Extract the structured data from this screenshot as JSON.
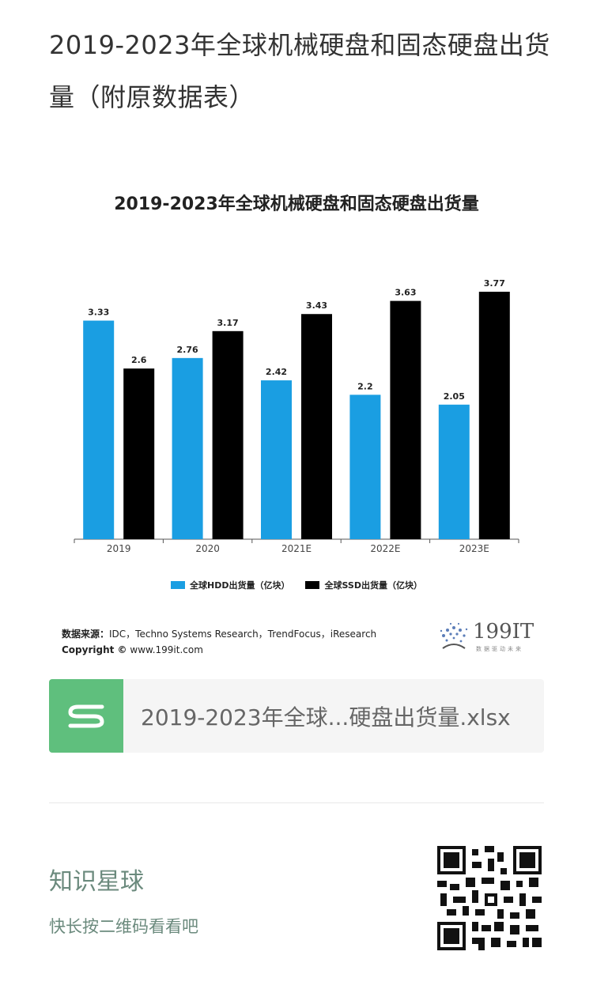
{
  "page": {
    "title": "2019-2023年全球机械硬盘和固态硬盘出货量（附原数据表）"
  },
  "chart_data": {
    "type": "bar",
    "title": "2019-2023年全球机械硬盘和固态硬盘出货量",
    "categories": [
      "2019",
      "2020",
      "2021E",
      "2022E",
      "2023E"
    ],
    "series": [
      {
        "name": "全球HDD出货量（亿块）",
        "values": [
          3.33,
          2.76,
          2.42,
          2.2,
          2.05
        ],
        "color": "#1a9ee2"
      },
      {
        "name": "全球SSD出货量（亿块）",
        "values": [
          2.6,
          3.17,
          3.43,
          3.63,
          3.77
        ],
        "color": "#000000"
      }
    ],
    "value_labels": [
      [
        "3.33",
        "2.76",
        "2.42",
        "2.2",
        "2.05"
      ],
      [
        "2.6",
        "3.17",
        "3.43",
        "3.63",
        "3.77"
      ]
    ],
    "ylim": [
      0,
      3.77
    ],
    "grid": false,
    "legend": "bottom"
  },
  "source": {
    "label": "数据来源：",
    "text": "IDC，Techno Systems Research，TrendFocus，iResearch",
    "copyright_label": "Copyright ©",
    "copyright_text": "www.199it.com"
  },
  "logo": {
    "text": "199IT",
    "tagline": "数据驱动未来"
  },
  "attachment": {
    "file_name": "2019-2023年全球...硬盘出货量.xlsx",
    "icon": "spreadsheet-icon",
    "icon_color": "#5fbf7d"
  },
  "footer": {
    "title": "知识星球",
    "subtitle": "快长按二维码看看吧",
    "qr_icon": "qr-code-icon"
  }
}
